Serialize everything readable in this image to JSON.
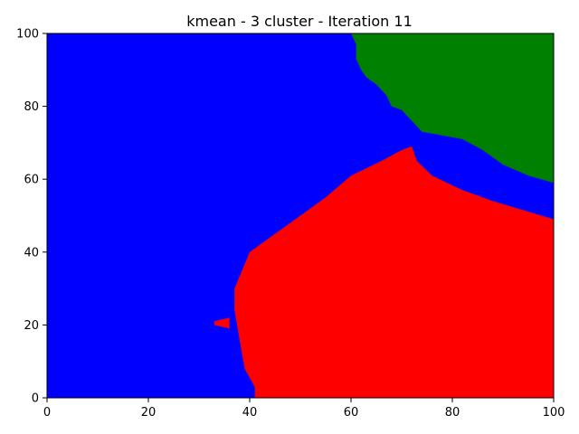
{
  "chart_data": {
    "type": "heatmap",
    "title": "kmean - 3 cluster - Iteration 11",
    "xlabel": "",
    "ylabel": "",
    "xlim": [
      0,
      100
    ],
    "ylim": [
      100,
      0
    ],
    "x_ticks": [
      0,
      20,
      40,
      60,
      80,
      100
    ],
    "y_ticks": [
      0,
      20,
      40,
      60,
      80,
      100
    ],
    "x_tick_labels": [
      "0",
      "20",
      "40",
      "60",
      "80",
      "100"
    ],
    "y_tick_labels": [
      "0",
      "20",
      "40",
      "60",
      "80",
      "100"
    ],
    "grid": false,
    "legend": "none",
    "clusters": [
      {
        "color": "#0000ff"
      },
      {
        "color": "#ff0000"
      },
      {
        "color": "#008000"
      }
    ],
    "regions": [
      {
        "cluster": 1,
        "polygon": [
          [
            41,
            0
          ],
          [
            100,
            0
          ],
          [
            100,
            49
          ],
          [
            88,
            54
          ],
          [
            82,
            57
          ],
          [
            76,
            61
          ],
          [
            73,
            65
          ],
          [
            72,
            69
          ],
          [
            70,
            68
          ],
          [
            66,
            65
          ],
          [
            60,
            61
          ],
          [
            55,
            55
          ],
          [
            50,
            50
          ],
          [
            45,
            45
          ],
          [
            40,
            40
          ],
          [
            37,
            30
          ],
          [
            37,
            24
          ],
          [
            38,
            16
          ],
          [
            39,
            8
          ],
          [
            41,
            3
          ]
        ]
      },
      {
        "cluster": 1,
        "polygon": [
          [
            33,
            20
          ],
          [
            36,
            19
          ],
          [
            36,
            22
          ],
          [
            33,
            21
          ]
        ]
      },
      {
        "cluster": 2,
        "polygon": [
          [
            100,
            59
          ],
          [
            95,
            61
          ],
          [
            90,
            64
          ],
          [
            86,
            68
          ],
          [
            82,
            71
          ],
          [
            78,
            72
          ],
          [
            74,
            73
          ],
          [
            72,
            76
          ],
          [
            70,
            79
          ],
          [
            68,
            80
          ],
          [
            67,
            83
          ],
          [
            65,
            86
          ],
          [
            63,
            88
          ],
          [
            62,
            90
          ],
          [
            61,
            93
          ],
          [
            61,
            97
          ],
          [
            60,
            100
          ],
          [
            100,
            100
          ]
        ]
      }
    ]
  }
}
